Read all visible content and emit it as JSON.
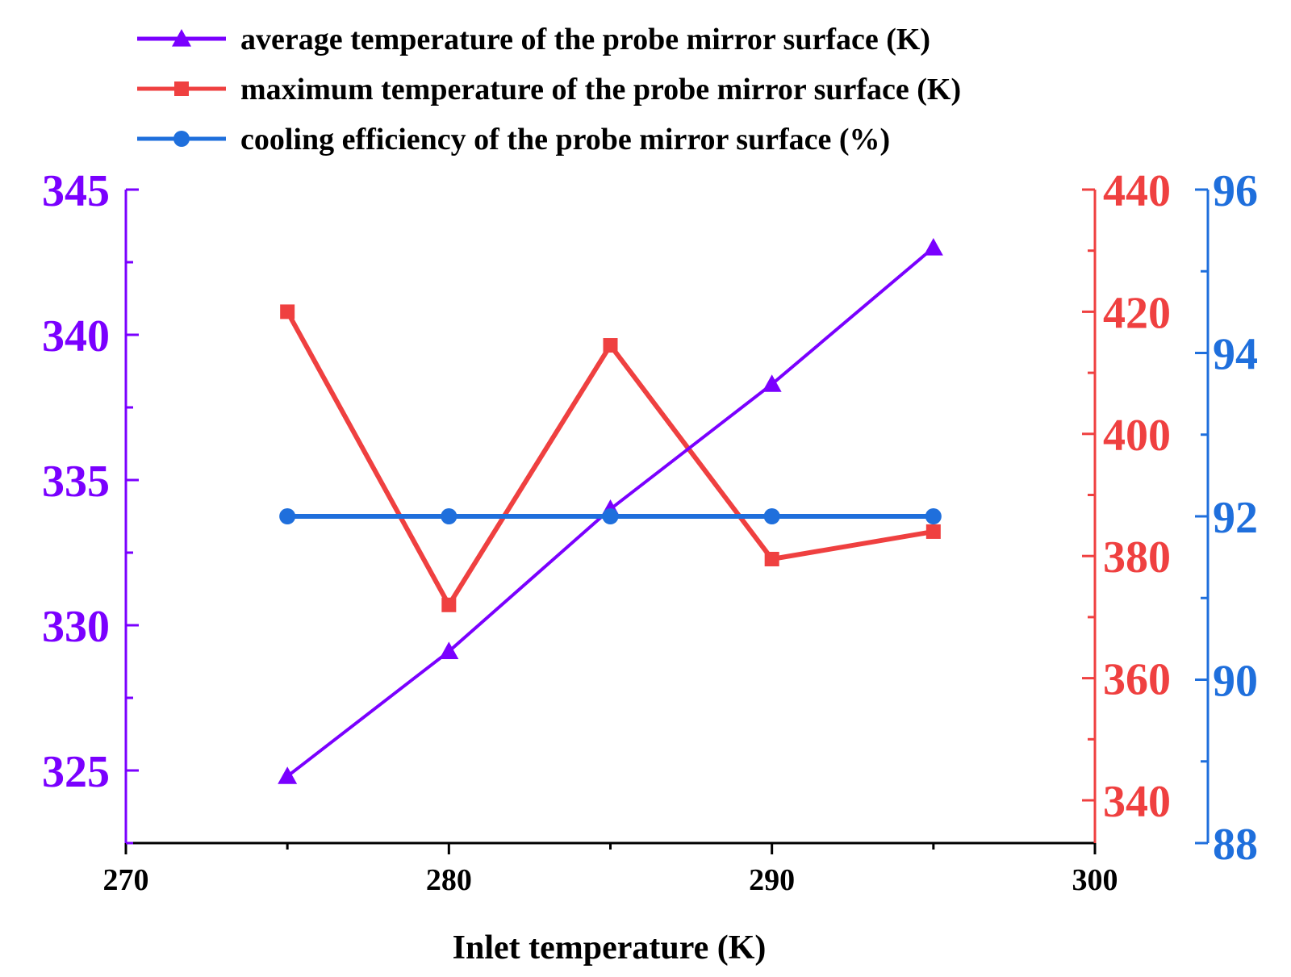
{
  "chart_data": {
    "type": "line",
    "title": "",
    "xlabel": "Inlet temperature (K)",
    "xlim": [
      270,
      300
    ],
    "xticks": [
      270,
      280,
      290,
      300
    ],
    "x": [
      275,
      280,
      285,
      290,
      295
    ],
    "series": [
      {
        "name": "average temperature of the probe mirror surface (K)",
        "axis": "left",
        "marker": "triangle",
        "color": "#7a00ff",
        "values": [
          324.8,
          329.1,
          334.0,
          338.3,
          343.0
        ]
      },
      {
        "name": "maximum temperature of the probe mirror surface (K)",
        "axis": "right1",
        "marker": "square",
        "color": "#ef4040",
        "values": [
          420.0,
          372.0,
          414.5,
          379.5,
          384.0
        ]
      },
      {
        "name": "cooling efficiency of the probe mirror surface (%)",
        "axis": "right2",
        "marker": "circle",
        "color": "#1f6fdc",
        "values": [
          92.0,
          92.0,
          92.0,
          92.0,
          92.0
        ]
      }
    ],
    "axes": {
      "left": {
        "ylim": [
          322.5,
          345
        ],
        "ticks": [
          325,
          330,
          335,
          340,
          345
        ],
        "color": "#7a00ff"
      },
      "right1": {
        "ylim": [
          333,
          440
        ],
        "ticks": [
          340,
          360,
          380,
          400,
          420,
          440
        ],
        "color": "#ef4040"
      },
      "right2": {
        "ylim": [
          88,
          96
        ],
        "ticks": [
          88,
          90,
          92,
          94,
          96
        ],
        "color": "#1f6fdc"
      }
    },
    "legend_position": "top"
  }
}
